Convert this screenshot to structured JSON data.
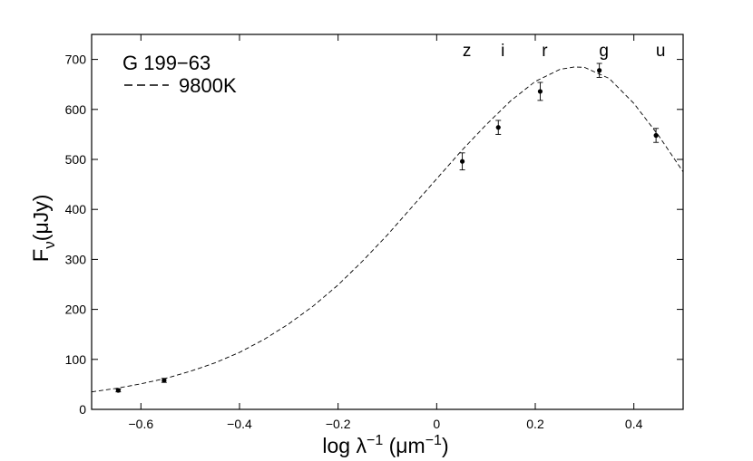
{
  "chart_data": {
    "type": "scatter",
    "title": "",
    "xlabel": {
      "main": "log λ",
      "sup1": "−1",
      "unit_open": " (μm",
      "sup2": "−1",
      "unit_close": ")"
    },
    "ylabel": {
      "main": "F",
      "sub": "ν",
      "unit": "(μJy)"
    },
    "xlim": [
      -0.7,
      0.5
    ],
    "ylim": [
      0,
      750
    ],
    "x_ticks": [
      -0.6,
      -0.4,
      -0.2,
      0,
      0.2,
      0.4
    ],
    "x_tick_labels": [
      "−0.6",
      "−0.4",
      "−0.2",
      "0",
      "0.2",
      "0.4"
    ],
    "y_ticks": [
      0,
      100,
      200,
      300,
      400,
      500,
      600,
      700
    ],
    "y_tick_labels": [
      "0",
      "100",
      "200",
      "300",
      "400",
      "500",
      "600",
      "700"
    ],
    "grid": false,
    "legend": {
      "position": "top-left",
      "object": "G 199−63",
      "model_label": "9800K",
      "model_line_style": "dashed"
    },
    "bands": [
      {
        "label": "z",
        "x": 0.052
      },
      {
        "label": "i",
        "x": 0.125
      },
      {
        "label": "r",
        "x": 0.21
      },
      {
        "label": "g",
        "x": 0.33
      },
      {
        "label": "u",
        "x": 0.445
      }
    ],
    "series": [
      {
        "name": "G 199−63",
        "style": "points-with-errorbars",
        "points": [
          {
            "x": -0.646,
            "y": 38,
            "err": 3
          },
          {
            "x": -0.553,
            "y": 58,
            "err": 4
          },
          {
            "x": 0.052,
            "y": 496,
            "err": 17
          },
          {
            "x": 0.125,
            "y": 564,
            "err": 14
          },
          {
            "x": 0.21,
            "y": 636,
            "err": 18
          },
          {
            "x": 0.33,
            "y": 678,
            "err": 14
          },
          {
            "x": 0.445,
            "y": 548,
            "err": 14
          }
        ]
      },
      {
        "name": "9800K",
        "style": "dashed-line",
        "x": [
          -0.7,
          -0.65,
          -0.6,
          -0.55,
          -0.5,
          -0.45,
          -0.4,
          -0.35,
          -0.3,
          -0.25,
          -0.2,
          -0.15,
          -0.1,
          -0.05,
          0,
          0.05,
          0.1,
          0.15,
          0.2,
          0.25,
          0.28,
          0.3,
          0.35,
          0.4,
          0.45,
          0.5
        ],
        "y": [
          35,
          42,
          51,
          62,
          76,
          93,
          114,
          140,
          171,
          207,
          249,
          297,
          349,
          405,
          461,
          517,
          569,
          617,
          656,
          680,
          685,
          684,
          662,
          612,
          548,
          475
        ]
      }
    ]
  }
}
